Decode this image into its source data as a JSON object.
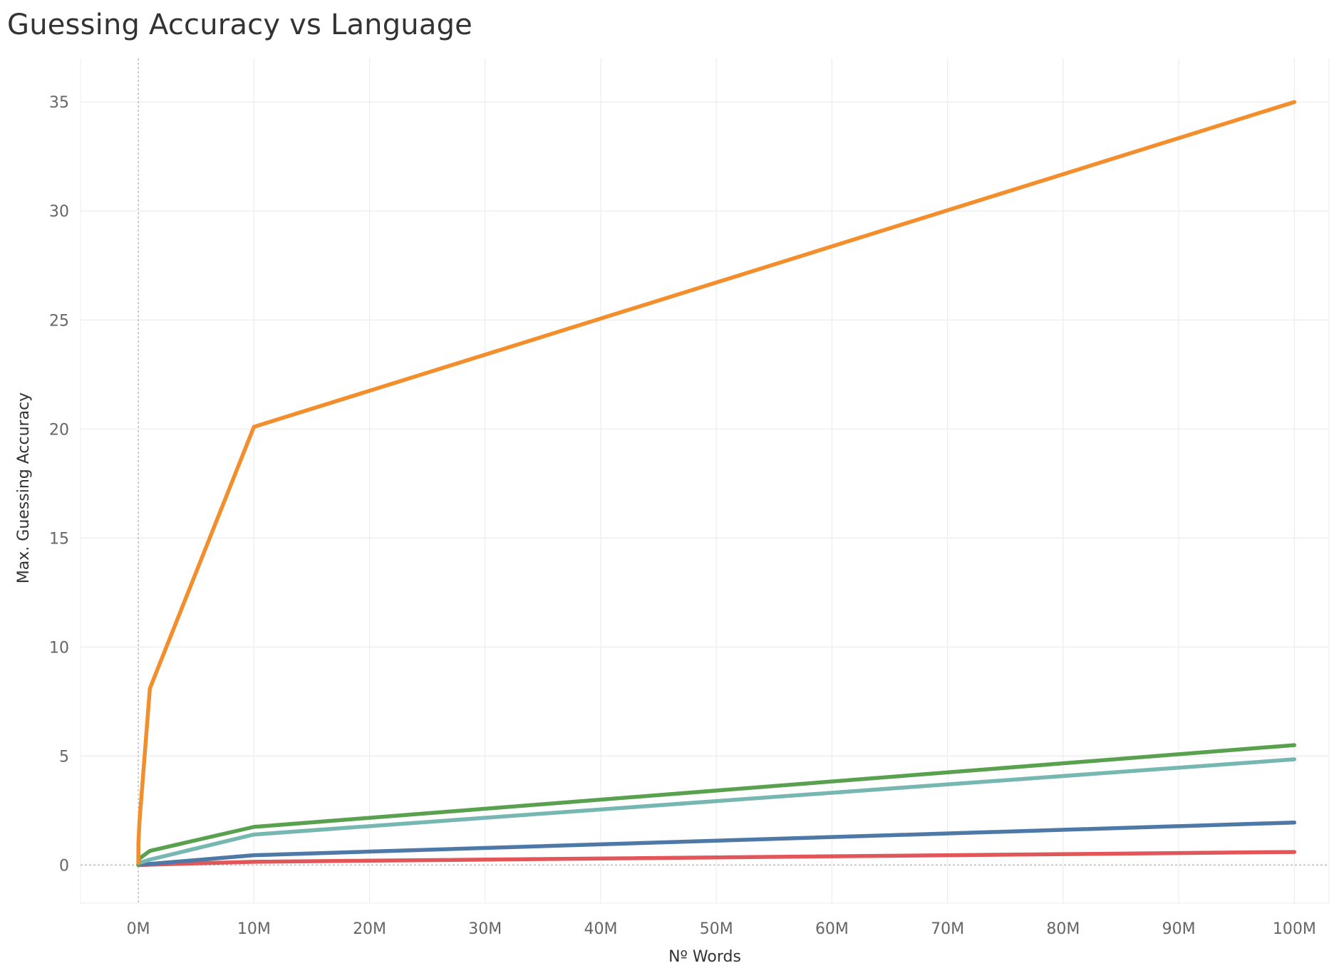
{
  "chart_data": {
    "type": "line",
    "title": "Guessing Accuracy vs Language",
    "xlabel": "Nº Words",
    "ylabel": "Max. Guessing Accuracy",
    "xlim": [
      -5000000,
      103000000
    ],
    "ylim": [
      -1.75,
      37
    ],
    "x_ticks": [
      0,
      10000000,
      20000000,
      30000000,
      40000000,
      50000000,
      60000000,
      70000000,
      80000000,
      90000000,
      100000000
    ],
    "x_tick_labels": [
      "0M",
      "10M",
      "20M",
      "30M",
      "40M",
      "50M",
      "60M",
      "70M",
      "80M",
      "90M",
      "100M"
    ],
    "y_ticks": [
      0,
      5,
      10,
      15,
      20,
      25,
      30,
      35
    ],
    "y_tick_labels": [
      "0",
      "5",
      "10",
      "15",
      "20",
      "25",
      "30",
      "35"
    ],
    "grid": true,
    "legend": "none",
    "x": [
      0,
      10000,
      100000,
      1000000,
      10000000,
      100000000
    ],
    "series": [
      {
        "color": "#F28E2B",
        "values": [
          0.1,
          1.0,
          2.0,
          8.1,
          20.1,
          35.0
        ]
      },
      {
        "color": "#59A14F",
        "values": [
          0.0,
          0.2,
          0.3,
          0.65,
          1.75,
          5.5
        ]
      },
      {
        "color": "#76B7B2",
        "values": [
          0.0,
          0.05,
          0.1,
          0.25,
          1.4,
          4.85
        ]
      },
      {
        "color": "#4E79A7",
        "values": [
          0.0,
          0.0,
          0.02,
          0.05,
          0.45,
          1.95
        ]
      },
      {
        "color": "#E15759",
        "values": [
          0.0,
          0.0,
          0.0,
          0.02,
          0.15,
          0.6
        ]
      }
    ]
  }
}
